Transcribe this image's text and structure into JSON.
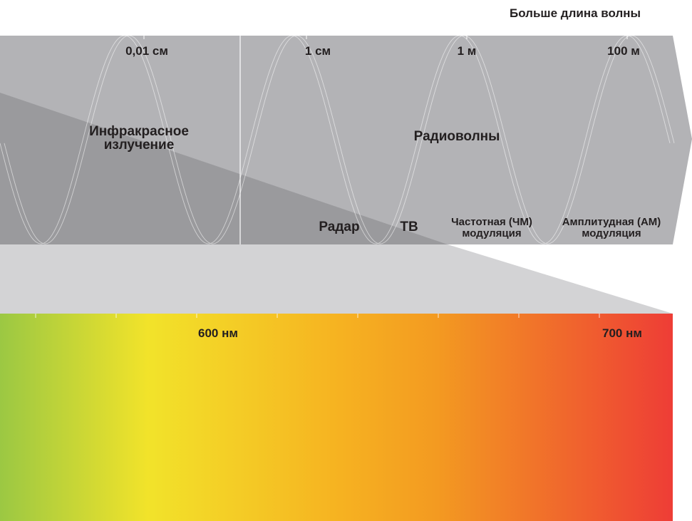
{
  "header": {
    "direction_label": "Больше длина волны"
  },
  "scale_labels": {
    "mm_001": "0,01 см",
    "cm_1": "1 см",
    "m_1": "1 м",
    "m_100": "100 м"
  },
  "regions": {
    "infrared": "Инфракрасное\nизлучение",
    "radio": "Радиоволны"
  },
  "bands": {
    "radar": "Радар",
    "tv": "ТВ",
    "fm": "Частотная (ЧМ)\nмодуляция",
    "am": "Амплитудная (АМ)\nмодуляция"
  },
  "visible_spectrum": {
    "nm_600": "600 нм",
    "nm_700": "700 нм"
  },
  "colors": {
    "band_light": "#b3b3b6",
    "band_shade": "#9a9a9d",
    "zoom_wedge": "#d3d3d5",
    "spectrum_stops": [
      "#9bc843",
      "#f2e32a",
      "#f6b321",
      "#f39a21",
      "#ee3d36"
    ]
  }
}
